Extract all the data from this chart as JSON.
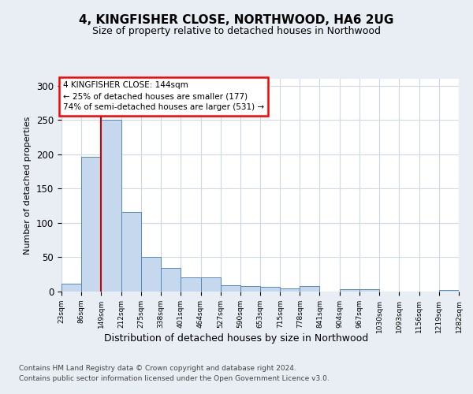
{
  "title": "4, KINGFISHER CLOSE, NORTHWOOD, HA6 2UG",
  "subtitle": "Size of property relative to detached houses in Northwood",
  "xlabel": "Distribution of detached houses by size in Northwood",
  "ylabel": "Number of detached properties",
  "footer_line1": "Contains HM Land Registry data © Crown copyright and database right 2024.",
  "footer_line2": "Contains public sector information licensed under the Open Government Licence v3.0.",
  "annotation_line1": "4 KINGFISHER CLOSE: 144sqm",
  "annotation_line2": "← 25% of detached houses are smaller (177)",
  "annotation_line3": "74% of semi-detached houses are larger (531) →",
  "bar_left_edges": [
    23,
    86,
    149,
    212,
    275,
    338,
    401,
    464,
    527,
    590,
    653,
    715,
    778,
    841,
    904,
    967,
    1030,
    1093,
    1156,
    1219
  ],
  "bar_widths": [
    63,
    63,
    63,
    63,
    63,
    63,
    63,
    63,
    63,
    63,
    63,
    63,
    63,
    63,
    63,
    63,
    63,
    63,
    63,
    63
  ],
  "bar_heights": [
    11,
    196,
    250,
    116,
    50,
    35,
    21,
    21,
    9,
    8,
    7,
    5,
    8,
    0,
    3,
    3,
    0,
    0,
    0,
    2
  ],
  "bar_color": "#c5d8ed",
  "bar_edge_color": "#5588bb",
  "property_size": 144,
  "vline_color": "#cc0000",
  "vline_x": 149,
  "ylim": [
    0,
    310
  ],
  "yticks": [
    0,
    50,
    100,
    150,
    200,
    250,
    300
  ],
  "tick_labels": [
    "23sqm",
    "86sqm",
    "149sqm",
    "212sqm",
    "275sqm",
    "338sqm",
    "401sqm",
    "464sqm",
    "527sqm",
    "590sqm",
    "653sqm",
    "715sqm",
    "778sqm",
    "841sqm",
    "904sqm",
    "967sqm",
    "1030sqm",
    "1093sqm",
    "1156sqm",
    "1219sqm",
    "1282sqm"
  ],
  "grid_color": "#d0d8e4",
  "background_color": "#e8eef4",
  "plot_bg_color": "#ffffff"
}
